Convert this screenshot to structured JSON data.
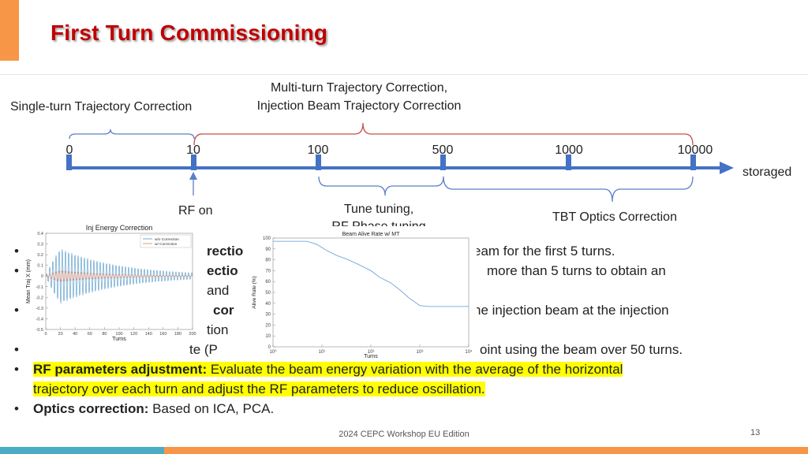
{
  "header": {
    "title": "First Turn Commissioning"
  },
  "timeline": {
    "ticks": [
      "0",
      "10",
      "100",
      "500",
      "1000",
      "10000"
    ],
    "end_label": "storaged",
    "upper_left_label": "Single-turn Trajectory Correction",
    "upper_mid_label_1": "Multi-turn Trajectory Correction,",
    "upper_mid_label_2": "Injection Beam Trajectory Correction",
    "rf_on_label": "RF on",
    "tune_label_1": "Tune tuning,",
    "tune_label_2": "RF Phase tuning",
    "tbt_label": "TBT Optics Correction"
  },
  "bullets": [
    {
      "bold": "",
      "text": "rectio",
      "right": "eam for the first 5 turns."
    },
    {
      "bold": "",
      "text": "ectio",
      "right": "more than 5 turns to obtain an",
      "cont": "and"
    },
    {
      "bold": "",
      "text": "cor",
      "right": "ne injection beam at the injection",
      "cont": "tion"
    },
    {
      "bold": "",
      "text": "te (P",
      "right": "oint using the beam over 50 turns."
    },
    {
      "bold": "RF parameters adjustment:",
      "text": " Evaluate the beam energy variation with the average of the horizontal",
      "cont": "trajectory over each turn and adjust the RF parameters to reduce oscillation."
    },
    {
      "bold": "Optics correction:",
      "text": " Based on ICA, PCA."
    }
  ],
  "footer": {
    "event": "2024 CEPC Workshop EU Edition",
    "page": "13"
  },
  "colors": {
    "title": "#c00000",
    "accent_orange": "#f79646",
    "accent_blue": "#4bacc6",
    "timeline_blue": "#4472c4",
    "bracket_blue": "#5b7fc7",
    "bracket_red": "#c0504d",
    "highlight": "#ffff00"
  },
  "chart_data": [
    {
      "type": "line",
      "title": "Inj Energy Correction",
      "xlabel": "Turns",
      "ylabel": "Mean Traj X (mm)",
      "xlim": [
        0,
        200
      ],
      "ylim": [
        -0.5,
        0.4
      ],
      "xticks": [
        "0",
        "20",
        "40",
        "60",
        "80",
        "100",
        "120",
        "140",
        "160",
        "180",
        "200"
      ],
      "yticks": [
        "0.4",
        "0.3",
        "0.2",
        "0.1",
        "0",
        "-0.1",
        "-0.2",
        "-0.3",
        "-0.4",
        "-0.5"
      ],
      "legend": "top-right",
      "series": [
        {
          "name": "w/o Correction",
          "color": "#4f97c7",
          "amplitude": 0.33,
          "decay": 0.012,
          "period": 4.3
        },
        {
          "name": "w/ Correction",
          "color": "#e57b5a",
          "amplitude": 0.07,
          "decay": 0.015,
          "period": 4.3
        }
      ]
    },
    {
      "type": "line",
      "title": "Beam Alive Rate w/ MT",
      "xlabel": "Turns",
      "ylabel": "Alive Rate (%)",
      "xscale": "log",
      "xlim": [
        1,
        10000
      ],
      "ylim": [
        0,
        100
      ],
      "xticks": [
        "10⁰",
        "10¹",
        "10²",
        "10³",
        "10⁴"
      ],
      "yticks": [
        "100",
        "90",
        "80",
        "70",
        "60",
        "50",
        "40",
        "30",
        "20",
        "10",
        "0"
      ],
      "series": [
        {
          "name": "",
          "color": "#5b9bd5",
          "x": [
            1,
            5,
            8,
            12,
            20,
            35,
            60,
            100,
            150,
            250,
            400,
            600,
            800,
            1000,
            1500,
            2500,
            5000,
            10000
          ],
          "y": [
            97,
            97,
            94,
            89,
            84,
            80,
            75,
            70,
            64,
            59,
            52,
            45,
            41,
            38,
            37,
            37,
            37,
            37
          ]
        }
      ]
    }
  ]
}
